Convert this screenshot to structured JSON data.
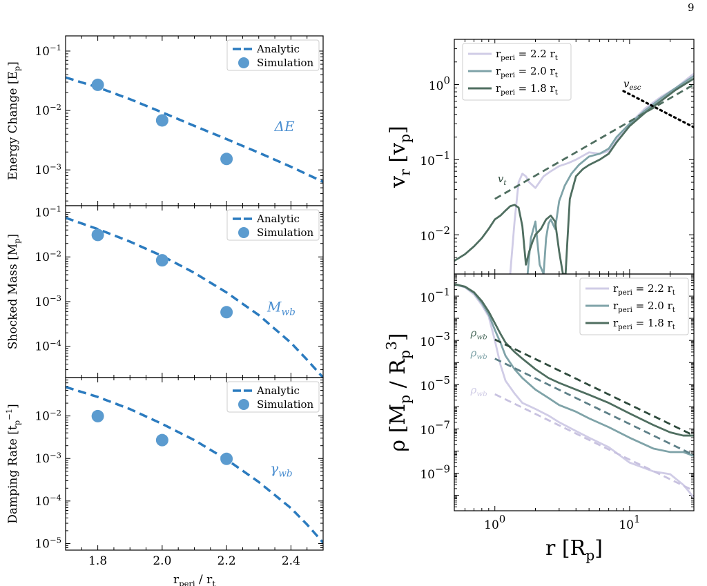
{
  "page_number": "9",
  "chart_data": [
    {
      "id": "energy",
      "type": "line+scatter",
      "ylabel": "Energy Change [E_p]",
      "ylog": true,
      "xlim": [
        1.7,
        2.5
      ],
      "ylim": [
        0.00025,
        0.18
      ],
      "yticks": [
        {
          "v": 0.001,
          "label": "10^-3"
        },
        {
          "v": 0.01,
          "label": "10^-2"
        },
        {
          "v": 0.1,
          "label": "10^-1"
        }
      ],
      "legend": [
        "Analytic",
        "Simulation"
      ],
      "legend_position": "top-right",
      "annotation": "ΔE",
      "annotation_pos": {
        "x": 2.38,
        "y": 0.0045
      },
      "series": [
        {
          "name": "Analytic",
          "style": "dashed",
          "x": [
            1.7,
            1.8,
            1.9,
            2.0,
            2.1,
            2.2,
            2.3,
            2.4,
            2.5
          ],
          "y": [
            0.036,
            0.0245,
            0.0155,
            0.0093,
            0.0055,
            0.0033,
            0.00195,
            0.00113,
            0.00063
          ]
        },
        {
          "name": "Simulation",
          "style": "markers",
          "x": [
            1.8,
            2.0,
            2.2
          ],
          "y": [
            0.027,
            0.0068,
            0.00153
          ]
        }
      ]
    },
    {
      "id": "mass",
      "type": "line+scatter",
      "ylabel": "Shocked Mass [M_p]",
      "ylog": true,
      "xlim": [
        1.7,
        2.5
      ],
      "ylim": [
        2e-05,
        0.14
      ],
      "yticks": [
        {
          "v": 0.0001,
          "label": "10^-4"
        },
        {
          "v": 0.001,
          "label": "10^-3"
        },
        {
          "v": 0.01,
          "label": "10^-2"
        },
        {
          "v": 0.1,
          "label": "10^-1"
        }
      ],
      "legend": [
        "Analytic",
        "Simulation"
      ],
      "legend_position": "top-right",
      "annotation": "M_wb",
      "annotation_pos": {
        "x": 2.37,
        "y": 0.0006
      },
      "series": [
        {
          "name": "Analytic",
          "style": "dashed",
          "x": [
            1.7,
            1.8,
            1.9,
            2.0,
            2.1,
            2.2,
            2.3,
            2.4,
            2.45,
            2.5
          ],
          "y": [
            0.075,
            0.042,
            0.022,
            0.0105,
            0.0044,
            0.0016,
            0.0005,
            0.00012,
            5e-05,
            2e-05
          ]
        },
        {
          "name": "Simulation",
          "style": "markers",
          "x": [
            1.8,
            2.0,
            2.2
          ],
          "y": [
            0.031,
            0.0084,
            0.00058
          ]
        }
      ]
    },
    {
      "id": "damping",
      "type": "line+scatter",
      "ylabel": "Damping Rate [t_p^-1]",
      "ylog": true,
      "xlim": [
        1.7,
        2.5
      ],
      "ylim": [
        7e-06,
        0.08
      ],
      "yticks": [
        {
          "v": 1e-05,
          "label": "10^-5"
        },
        {
          "v": 0.0001,
          "label": "10^-4"
        },
        {
          "v": 0.001,
          "label": "10^-3"
        },
        {
          "v": 0.01,
          "label": "10^-2"
        }
      ],
      "xticks": [
        {
          "v": 1.8,
          "label": "1.8"
        },
        {
          "v": 2.0,
          "label": "2.0"
        },
        {
          "v": 2.2,
          "label": "2.2"
        },
        {
          "v": 2.4,
          "label": "2.4"
        }
      ],
      "xlabel": "r_peri / r_t",
      "legend": [
        "Analytic",
        "Simulation"
      ],
      "legend_position": "top-right",
      "annotation": "γ_wb",
      "annotation_pos": {
        "x": 2.37,
        "y": 0.00045
      },
      "series": [
        {
          "name": "Analytic",
          "style": "dashed",
          "x": [
            1.7,
            1.8,
            1.9,
            2.0,
            2.1,
            2.2,
            2.3,
            2.4,
            2.45,
            2.5
          ],
          "y": [
            0.048,
            0.028,
            0.0145,
            0.0065,
            0.0027,
            0.00095,
            0.00028,
            6.8e-05,
            2.8e-05,
            1.05e-05
          ]
        },
        {
          "name": "Simulation",
          "style": "markers",
          "x": [
            1.8,
            2.0,
            2.2
          ],
          "y": [
            0.0099,
            0.0027,
            0.00098
          ]
        }
      ]
    },
    {
      "id": "velocity",
      "type": "line",
      "ylabel": "v_r [v_p]",
      "xlog": true,
      "ylog": true,
      "xlim": [
        0.5,
        30
      ],
      "ylim": [
        0.003,
        4
      ],
      "yticks": [
        {
          "v": 0.01,
          "label": "10^-2"
        },
        {
          "v": 0.1,
          "label": "10^-1"
        },
        {
          "v": 1,
          "label": "10^0"
        }
      ],
      "legend": [
        "r_peri = 2.2 r_t",
        "r_peri = 2.0 r_t",
        "r_peri = 1.8 r_t"
      ],
      "legend_position": "top-left",
      "annotations": [
        {
          "text": "v_esc",
          "x": 9,
          "y": 0.92
        },
        {
          "text": "v_t",
          "x": 1.05,
          "y": 0.05
        }
      ],
      "series": [
        {
          "name": "r_peri = 2.2 r_t",
          "color": "#d0cce6",
          "x": [
            1.3,
            1.4,
            1.5,
            1.6,
            1.7,
            1.8,
            2.0,
            2.3,
            2.6,
            3.0,
            3.5,
            4.0,
            5.0,
            6.0,
            7.0,
            8.0,
            10.0,
            13.0,
            17.0,
            22.0,
            30.0
          ],
          "y": [
            0.003,
            0.015,
            0.05,
            0.065,
            0.06,
            0.05,
            0.042,
            0.06,
            0.07,
            0.082,
            0.09,
            0.1,
            0.125,
            0.12,
            0.13,
            0.18,
            0.3,
            0.48,
            0.68,
            0.9,
            1.4
          ]
        },
        {
          "name": "r_peri = 2.0 r_t",
          "color": "#7fa3a8",
          "x": [
            1.75,
            1.85,
            2.0,
            2.15,
            2.3,
            2.4,
            2.5,
            2.6,
            2.8,
            3.0,
            3.3,
            3.7,
            4.2,
            5.0,
            6.0,
            7.0,
            8.0,
            10.0,
            13.0,
            17.0,
            22.0,
            30.0
          ],
          "y": [
            0.003,
            0.009,
            0.015,
            0.004,
            0.003,
            0.009,
            0.014,
            0.016,
            0.012,
            0.028,
            0.045,
            0.065,
            0.085,
            0.11,
            0.12,
            0.14,
            0.2,
            0.3,
            0.45,
            0.65,
            0.9,
            1.3
          ]
        },
        {
          "name": "r_peri = 1.8 r_t",
          "color": "#4f6e60",
          "x": [
            0.5,
            0.6,
            0.7,
            0.8,
            0.9,
            1.0,
            1.1,
            1.2,
            1.3,
            1.4,
            1.5,
            1.6,
            1.7,
            1.8,
            1.9,
            2.0,
            2.2,
            2.4,
            2.6,
            2.8,
            3.0,
            3.2,
            3.35,
            3.45,
            3.6,
            4.0,
            4.5,
            5.0,
            6.0,
            7.0,
            8.0,
            10.0,
            13.0,
            17.0,
            22.0,
            30.0
          ],
          "y": [
            0.0045,
            0.0055,
            0.007,
            0.009,
            0.012,
            0.016,
            0.018,
            0.021,
            0.024,
            0.025,
            0.023,
            0.013,
            0.004,
            0.006,
            0.008,
            0.01,
            0.012,
            0.016,
            0.018,
            0.015,
            0.006,
            0.003,
            0.003,
            0.008,
            0.03,
            0.06,
            0.075,
            0.085,
            0.1,
            0.12,
            0.17,
            0.28,
            0.42,
            0.6,
            0.85,
            1.2
          ]
        },
        {
          "name": "v_esc",
          "color": "#000000",
          "style": "dotted",
          "x": [
            9,
            30
          ],
          "y": [
            0.82,
            0.27
          ]
        },
        {
          "name": "v_t",
          "color": "#4f6e60",
          "style": "dashed",
          "x": [
            1.0,
            30.0
          ],
          "y": [
            0.03,
            1.0
          ]
        }
      ]
    },
    {
      "id": "density",
      "type": "line",
      "ylabel": "ρ [M_p / R_p^3]",
      "xlabel": "r [R_p]",
      "xlog": true,
      "ylog": true,
      "xlim": [
        0.5,
        30
      ],
      "ylim": [
        2e-11,
        1
      ],
      "yticks": [
        {
          "v": 1e-09,
          "label": "10^-9"
        },
        {
          "v": 1e-07,
          "label": "10^-7"
        },
        {
          "v": 1e-05,
          "label": "10^-5"
        },
        {
          "v": 0.001,
          "label": "10^-3"
        },
        {
          "v": 0.1,
          "label": "10^-1"
        }
      ],
      "xticks": [
        {
          "v": 1,
          "label": "10^0"
        },
        {
          "v": 10,
          "label": "10^1"
        }
      ],
      "legend": [
        "r_peri = 2.2 r_t",
        "r_peri = 2.0 r_t",
        "r_peri = 1.8 r_t"
      ],
      "legend_position": "top-right",
      "annotations": [
        {
          "text": "ρ_wb",
          "x": 0.66,
          "y": 0.0015,
          "color": "#4f6e60"
        },
        {
          "text": "ρ_wb",
          "x": 0.66,
          "y": 0.00019,
          "color": "#7fa3a8"
        },
        {
          "text": "ρ_wb",
          "x": 0.66,
          "y": 4e-06,
          "color": "#d0cce6"
        }
      ],
      "series": [
        {
          "name": "r_peri = 2.2 r_t",
          "color": "#d0cce6",
          "x": [
            0.5,
            0.6,
            0.7,
            0.8,
            0.9,
            1.0,
            1.1,
            1.2,
            1.4,
            1.6,
            2.0,
            2.5,
            3.0,
            4.0,
            5.0,
            7.0,
            10.0,
            15.0,
            20.0,
            25.0,
            30.0
          ],
          "y": [
            0.35,
            0.25,
            0.12,
            0.04,
            0.012,
            0.001,
            8e-05,
            1.5e-05,
            4e-06,
            1.5e-06,
            8e-07,
            4e-07,
            2e-07,
            8e-08,
            4e-08,
            1.5e-08,
            3e-09,
            1.2e-09,
            9e-10,
            3e-10,
            8e-11
          ]
        },
        {
          "name": "r_peri = 2.0 r_t",
          "color": "#7fa3a8",
          "x": [
            0.5,
            0.6,
            0.7,
            0.8,
            0.9,
            1.0,
            1.1,
            1.2,
            1.4,
            1.6,
            2.0,
            2.5,
            3.0,
            4.0,
            5.0,
            7.0,
            10.0,
            15.0,
            20.0,
            25.0,
            30.0
          ],
          "y": [
            0.35,
            0.26,
            0.14,
            0.05,
            0.015,
            0.003,
            0.0008,
            0.0002,
            5e-05,
            2e-05,
            6e-06,
            2.5e-06,
            1.2e-06,
            6e-07,
            3e-07,
            1.2e-07,
            4e-08,
            1.3e-08,
            9e-09,
            9e-09,
            6e-09
          ]
        },
        {
          "name": "r_peri = 1.8 r_t",
          "color": "#4f6e60",
          "x": [
            0.5,
            0.6,
            0.7,
            0.8,
            0.9,
            1.0,
            1.1,
            1.2,
            1.4,
            1.6,
            2.0,
            2.5,
            3.0,
            4.0,
            5.0,
            7.0,
            10.0,
            15.0,
            20.0,
            25.0,
            30.0
          ],
          "y": [
            0.35,
            0.27,
            0.15,
            0.06,
            0.02,
            0.006,
            0.002,
            0.0008,
            0.0003,
            0.00015,
            5e-05,
            2e-05,
            1.2e-05,
            6e-06,
            3.5e-06,
            1.5e-06,
            5e-07,
            1.5e-07,
            7e-08,
            5e-08,
            5e-08
          ]
        },
        {
          "name": "ρ_wb 1.8",
          "color": "#2e4a3c",
          "style": "dashed",
          "x": [
            1.0,
            30.0
          ],
          "y": [
            0.0011,
            5e-08
          ]
        },
        {
          "name": "ρ_wb 2.0",
          "color": "#5e8088",
          "style": "dashed",
          "x": [
            1.0,
            30.0
          ],
          "y": [
            0.00015,
            6.5e-09
          ]
        },
        {
          "name": "ρ_wb 2.2",
          "color": "#c8c2e0",
          "style": "dashed",
          "x": [
            1.0,
            30.0
          ],
          "y": [
            3.7e-06,
            1.6e-10
          ]
        }
      ]
    }
  ],
  "colors": {
    "analytic": "#2b7bbf",
    "simulation": "#5b9bcf",
    "annotation_left": "#4a8ed0"
  }
}
